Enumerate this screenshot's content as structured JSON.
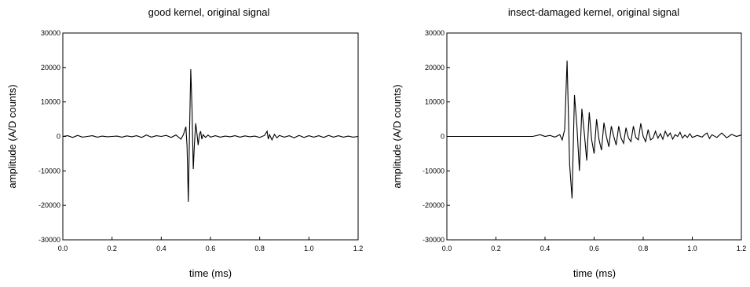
{
  "chart_data": [
    {
      "type": "line",
      "title": "good kernel, original signal",
      "xlabel": "time (ms)",
      "ylabel": "amplitude (A/D counts)",
      "xlim": [
        0.0,
        1.2
      ],
      "ylim": [
        -30000,
        30000
      ],
      "xticks": [
        "0.0",
        "0.2",
        "0.4",
        "0.6",
        "0.8",
        "1.0",
        "1.2"
      ],
      "yticks": [
        "30000",
        "20000",
        "10000",
        "0",
        "-10000",
        "-20000",
        "-30000"
      ],
      "grid": false,
      "legend": "none",
      "color": "#000000",
      "series": [
        {
          "x": [
            0.0,
            0.02,
            0.04,
            0.06,
            0.08,
            0.1,
            0.12,
            0.14,
            0.16,
            0.18,
            0.2,
            0.22,
            0.24,
            0.26,
            0.28,
            0.3,
            0.32,
            0.34,
            0.36,
            0.38,
            0.4,
            0.42,
            0.44,
            0.46,
            0.48,
            0.49,
            0.5,
            0.505,
            0.51,
            0.515,
            0.52,
            0.525,
            0.53,
            0.535,
            0.54,
            0.545,
            0.55,
            0.555,
            0.56,
            0.565,
            0.57,
            0.58,
            0.59,
            0.6,
            0.62,
            0.64,
            0.66,
            0.68,
            0.7,
            0.72,
            0.74,
            0.76,
            0.78,
            0.8,
            0.82,
            0.83,
            0.835,
            0.84,
            0.85,
            0.86,
            0.87,
            0.88,
            0.9,
            0.92,
            0.94,
            0.96,
            0.98,
            1.0,
            1.02,
            1.04,
            1.06,
            1.08,
            1.1,
            1.12,
            1.14,
            1.16,
            1.18,
            1.2
          ],
          "y": [
            0,
            200,
            -300,
            300,
            -200,
            0,
            200,
            -200,
            100,
            -100,
            0,
            100,
            -200,
            150,
            -100,
            200,
            -300,
            400,
            -200,
            200,
            0,
            300,
            -300,
            400,
            -800,
            500,
            2800,
            -3000,
            -19000,
            2000,
            19500,
            8000,
            -9500,
            -2000,
            3800,
            800,
            -2500,
            500,
            1500,
            -800,
            500,
            -300,
            400,
            -200,
            200,
            -200,
            100,
            -100,
            200,
            -200,
            150,
            -100,
            100,
            -300,
            300,
            1500,
            -800,
            500,
            -1000,
            600,
            -400,
            300,
            -200,
            200,
            -400,
            300,
            -300,
            200,
            -200,
            200,
            -300,
            300,
            -200,
            200,
            -200,
            100,
            -200,
            0
          ]
        }
      ]
    },
    {
      "type": "line",
      "title": "insect-damaged kernel, original signal",
      "xlabel": "time (ms)",
      "ylabel": "amplitude (A/D counts)",
      "xlim": [
        0.0,
        1.2
      ],
      "ylim": [
        -30000,
        30000
      ],
      "xticks": [
        "0.0",
        "0.2",
        "0.4",
        "0.6",
        "0.8",
        "1.0",
        "1.2"
      ],
      "yticks": [
        "30000",
        "20000",
        "10000",
        "0",
        "-10000",
        "-20000",
        "-30000"
      ],
      "grid": false,
      "legend": "none",
      "color": "#000000",
      "series": [
        {
          "x": [
            0.0,
            0.05,
            0.1,
            0.15,
            0.2,
            0.25,
            0.3,
            0.35,
            0.38,
            0.4,
            0.42,
            0.44,
            0.46,
            0.47,
            0.48,
            0.49,
            0.5,
            0.51,
            0.52,
            0.53,
            0.54,
            0.55,
            0.56,
            0.57,
            0.58,
            0.59,
            0.6,
            0.61,
            0.62,
            0.63,
            0.64,
            0.65,
            0.66,
            0.67,
            0.68,
            0.69,
            0.7,
            0.71,
            0.72,
            0.73,
            0.74,
            0.75,
            0.76,
            0.77,
            0.78,
            0.79,
            0.8,
            0.81,
            0.82,
            0.83,
            0.84,
            0.85,
            0.86,
            0.87,
            0.88,
            0.89,
            0.9,
            0.91,
            0.92,
            0.93,
            0.94,
            0.95,
            0.96,
            0.97,
            0.98,
            0.99,
            1.0,
            1.02,
            1.04,
            1.05,
            1.06,
            1.07,
            1.08,
            1.1,
            1.12,
            1.14,
            1.16,
            1.18,
            1.2
          ],
          "y": [
            0,
            0,
            0,
            0,
            0,
            0,
            0,
            0,
            500,
            0,
            300,
            -200,
            500,
            -1000,
            2000,
            22000,
            -8000,
            -18000,
            12000,
            3000,
            -10000,
            8000,
            1000,
            -7000,
            7000,
            -1000,
            -5000,
            5000,
            -1000,
            -4000,
            4000,
            0,
            -3000,
            3000,
            0,
            -2500,
            3000,
            -500,
            -2000,
            2500,
            -500,
            -1500,
            3000,
            -300,
            -1000,
            3800,
            0,
            -1500,
            2000,
            -1000,
            -500,
            1500,
            -500,
            800,
            -800,
            1500,
            0,
            1000,
            -800,
            500,
            0,
            1200,
            -500,
            400,
            -300,
            800,
            -300,
            300,
            -200,
            500,
            1000,
            -600,
            500,
            -300,
            1000,
            -400,
            600,
            0,
            400
          ]
        }
      ]
    }
  ]
}
